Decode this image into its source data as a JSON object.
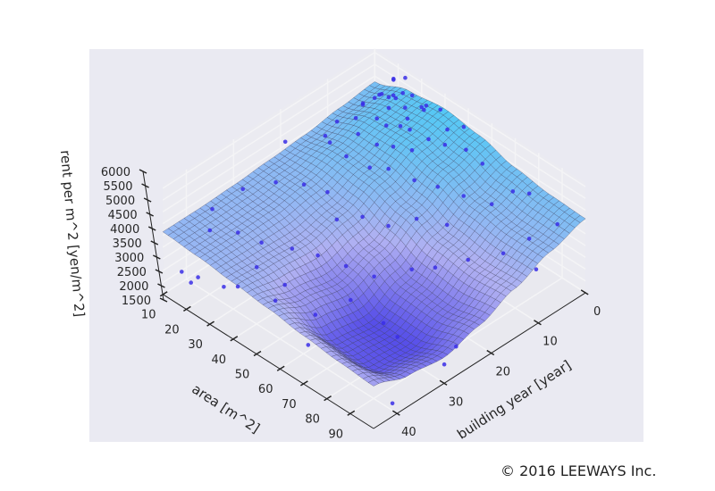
{
  "chart_data": {
    "type": "surface3d",
    "x_axis": {
      "label": "area [m^2]",
      "ticks": [
        10,
        20,
        30,
        40,
        50,
        60,
        70,
        80,
        90
      ],
      "range": [
        10,
        100
      ]
    },
    "y_axis": {
      "label": "building year [year]",
      "ticks": [
        0,
        10,
        20,
        30,
        40
      ],
      "range": [
        0,
        45
      ]
    },
    "z_axis": {
      "label": "rent per m^2 [yen/m^2]",
      "ticks": [
        1500,
        2000,
        2500,
        3000,
        3500,
        4000,
        4500,
        5000,
        5500,
        6000
      ],
      "range": [
        1500,
        6160
      ]
    },
    "surface": {
      "area_grid": [
        10,
        25,
        40,
        55,
        70,
        85,
        100
      ],
      "year_grid": [
        0,
        7.5,
        15,
        22.5,
        30,
        37.5,
        45
      ],
      "rent": [
        [
          4760,
          5300,
          5500,
          5300,
          4900,
          4700,
          4640
        ],
        [
          4600,
          5100,
          5200,
          4900,
          4400,
          4200,
          4200
        ],
        [
          4400,
          4700,
          4600,
          4200,
          3700,
          3500,
          3600
        ],
        [
          4300,
          4300,
          4000,
          3400,
          2800,
          2700,
          3000
        ],
        [
          4200,
          4100,
          3700,
          2900,
          2100,
          2100,
          2600
        ],
        [
          4150,
          4050,
          3800,
          3200,
          2300,
          2200,
          2800
        ],
        [
          4150,
          4050,
          3900,
          3750,
          3550,
          3400,
          3300
        ]
      ]
    },
    "scatter_points": [
      [
        20,
        1,
        5600
      ],
      [
        22,
        2,
        5900
      ],
      [
        25,
        1,
        6000
      ],
      [
        28,
        3,
        5800
      ],
      [
        30,
        2,
        5700
      ],
      [
        24,
        4,
        5500
      ],
      [
        26,
        5,
        5300
      ],
      [
        32,
        1,
        5200
      ],
      [
        35,
        2,
        5400
      ],
      [
        38,
        3,
        5900
      ],
      [
        40,
        1,
        5600
      ],
      [
        33,
        6,
        5100
      ],
      [
        29,
        7,
        5000
      ],
      [
        27,
        8,
        5300
      ],
      [
        22,
        6,
        5600
      ],
      [
        18,
        3,
        5100
      ],
      [
        45,
        2,
        5200
      ],
      [
        48,
        4,
        5000
      ],
      [
        50,
        1,
        5500
      ],
      [
        55,
        3,
        5100
      ],
      [
        60,
        2,
        4700
      ],
      [
        42,
        8,
        4900
      ],
      [
        36,
        9,
        4800
      ],
      [
        31,
        10,
        4700
      ],
      [
        25,
        11,
        4900
      ],
      [
        20,
        9,
        5000
      ],
      [
        15,
        5,
        4800
      ],
      [
        14,
        10,
        4600
      ],
      [
        17,
        14,
        4700
      ],
      [
        21,
        15,
        4800
      ],
      [
        26,
        14,
        4400
      ],
      [
        34,
        13,
        4300
      ],
      [
        40,
        12,
        4500
      ],
      [
        47,
        10,
        4200
      ],
      [
        55,
        9,
        4300
      ],
      [
        62,
        7,
        4100
      ],
      [
        70,
        5,
        4000
      ],
      [
        75,
        3,
        4600
      ],
      [
        80,
        2,
        4700
      ],
      [
        90,
        1,
        3900
      ],
      [
        88,
        6,
        3800
      ],
      [
        65,
        12,
        3700
      ],
      [
        58,
        15,
        3900
      ],
      [
        52,
        18,
        3600
      ],
      [
        45,
        20,
        3800
      ],
      [
        38,
        22,
        3500
      ],
      [
        30,
        20,
        3900
      ],
      [
        24,
        22,
        4100
      ],
      [
        18,
        25,
        4200
      ],
      [
        14,
        30,
        4300
      ],
      [
        12,
        20,
        4900
      ],
      [
        11,
        35,
        3900
      ],
      [
        16,
        38,
        3700
      ],
      [
        22,
        35,
        3600
      ],
      [
        28,
        33,
        3300
      ],
      [
        35,
        30,
        3100
      ],
      [
        42,
        28,
        3000
      ],
      [
        50,
        26,
        2800
      ],
      [
        58,
        24,
        2600
      ],
      [
        66,
        20,
        2900
      ],
      [
        72,
        18,
        3100
      ],
      [
        78,
        14,
        3300
      ],
      [
        85,
        10,
        3500
      ],
      [
        95,
        8,
        3200
      ],
      [
        55,
        35,
        2200
      ],
      [
        62,
        40,
        2000
      ],
      [
        70,
        28,
        1900
      ],
      [
        80,
        30,
        2200
      ],
      [
        48,
        40,
        3000
      ],
      [
        40,
        44,
        3600
      ],
      [
        30,
        42,
        2700
      ],
      [
        20,
        44,
        2500
      ],
      [
        12,
        42,
        2200
      ],
      [
        15,
        40,
        1900
      ],
      [
        95,
        25,
        2100
      ],
      [
        98,
        40,
        1800
      ],
      [
        100,
        30,
        2300
      ],
      [
        60,
        30,
        2500
      ],
      [
        44,
        36,
        2900
      ],
      [
        36,
        38,
        3400
      ],
      [
        23,
        5,
        5700
      ],
      [
        24,
        3,
        5450
      ],
      [
        27,
        4,
        5650
      ],
      [
        31,
        4,
        5500
      ],
      [
        34,
        5,
        5350
      ],
      [
        37,
        6,
        5200
      ],
      [
        19,
        7,
        5250
      ],
      [
        43,
        5,
        5050
      ]
    ]
  },
  "footer": {
    "copyright": "© 2016 LEEWAYS Inc."
  },
  "colors": {
    "background": "#eaeaf2",
    "pane": "#ececf3",
    "point": "#3a2ee6",
    "low": "#3c32e6",
    "mid": "#aaaaf2",
    "high": "#48c4f4"
  }
}
